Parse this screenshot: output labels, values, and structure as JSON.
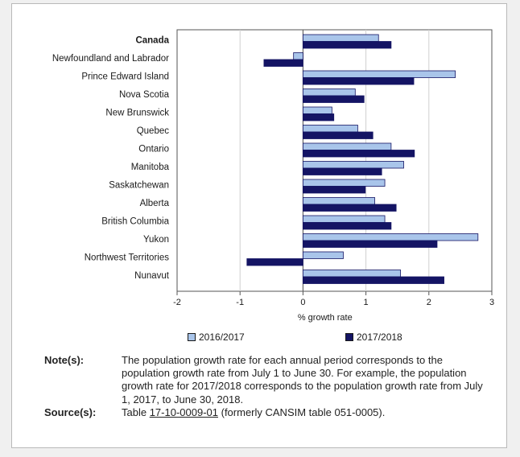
{
  "chart_data": {
    "type": "bar",
    "orientation": "horizontal",
    "categories": [
      "Canada",
      "Newfoundland and Labrador",
      "Prince Edward Island",
      "Nova Scotia",
      "New Brunswick",
      "Quebec",
      "Ontario",
      "Manitoba",
      "Saskatchewan",
      "Alberta",
      "British Columbia",
      "Yukon",
      "Northwest Territories",
      "Nunavut"
    ],
    "series": [
      {
        "name": "2016/2017",
        "color": "#a9c5ea",
        "values": [
          1.2,
          -0.15,
          2.42,
          0.83,
          0.46,
          0.87,
          1.4,
          1.6,
          1.3,
          1.14,
          1.3,
          2.78,
          0.64,
          1.55
        ]
      },
      {
        "name": "2017/2018",
        "color": "#141464",
        "values": [
          1.4,
          -0.62,
          1.76,
          0.97,
          0.49,
          1.11,
          1.77,
          1.25,
          0.99,
          1.48,
          1.4,
          2.13,
          -0.89,
          2.24
        ]
      }
    ],
    "xlabel": "% growth rate",
    "xlim": [
      -2,
      3
    ],
    "xticks": [
      "-2",
      "-1",
      "0",
      "1",
      "2",
      "3"
    ],
    "xtick_values": [
      -2,
      -1,
      0,
      1,
      2,
      3
    ],
    "bold_category": "Canada",
    "legend_position": "bottom"
  },
  "notes": {
    "label": "Note(s):",
    "text": "The population growth rate for each annual period corresponds to the population growth rate from July 1 to June 30. For example, the population growth rate for 2017/2018 corresponds to the population growth rate from July 1, 2017, to June 30, 2018."
  },
  "source": {
    "label": "Source(s):",
    "prefix": "Table ",
    "link_text": "17-10-0009-01",
    "suffix": " (formerly CANSIM table 051-0005)."
  }
}
